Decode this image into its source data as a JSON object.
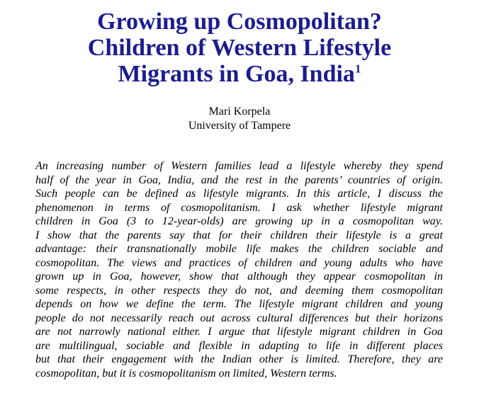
{
  "header": {
    "title_lines": [
      "Growing up Cosmopolitan?",
      "Children of Western Lifestyle",
      "Migrants in Goa, India"
    ],
    "footnote_marker": "1",
    "author": "Mari Korpela",
    "affiliation": "University of Tampere"
  },
  "abstract": {
    "lines": [
      "An increasing number of Western families lead a lifestyle whereby they spend",
      "half of the year in Goa, India, and the rest in the parents’ countries of origin.",
      "Such people can be defined as lifestyle migrants. In this article, I discuss the",
      "phenomenon in terms of cosmopolitanism. I ask whether lifestyle migrant",
      "children in Goa (3 to 12-year-olds) are growing up in a cosmopolitan way.",
      "I show that the parents say that for their children their lifestyle is a great",
      "advantage: their transnationally mobile life makes the children sociable and",
      "cosmopolitan. The views and practices of children and young adults who have",
      "grown up in Goa, however, show that although they appear cosmopolitan in",
      "some respects, in other respects they do not, and deeming them cosmopolitan",
      "depends on how we define the term. The lifestyle migrant children and young",
      "people do not necessarily reach out across cultural differences but their horizons",
      "are not narrowly national either. I argue that lifestyle migrant children in Goa",
      "are multilingual, sociable and flexible in adapting to life in different places",
      "but that their engagement with the Indian other is limited. Therefore, they are",
      "cosmopolitan, but it is cosmopolitanism on limited, Western terms."
    ]
  }
}
